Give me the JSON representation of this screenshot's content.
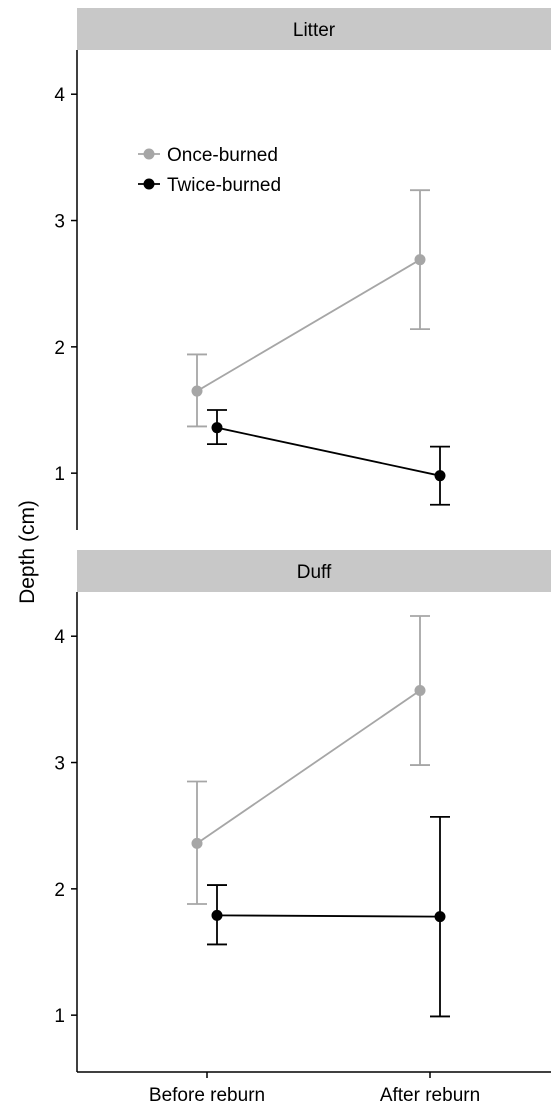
{
  "chart_data": {
    "type": "line",
    "ylabel": "Depth (cm)",
    "xlabel": "",
    "categories": [
      "Before reburn",
      "After reburn"
    ],
    "legend": {
      "position": "top-left",
      "entries": [
        "Once-burned",
        "Twice-burned"
      ]
    },
    "colors": {
      "Once-burned": "#a6a6a6",
      "Twice-burned": "#000000",
      "strip_background": "#c8c8c8"
    },
    "grid": false,
    "panels": [
      {
        "title": "Litter",
        "ylim": [
          0.55,
          4.35
        ],
        "yticks": [
          1,
          2,
          3,
          4
        ],
        "series": [
          {
            "name": "Once-burned",
            "values": [
              1.65,
              2.69
            ],
            "lower": [
              1.37,
              2.14
            ],
            "upper": [
              1.94,
              3.24
            ]
          },
          {
            "name": "Twice-burned",
            "values": [
              1.36,
              0.98
            ],
            "lower": [
              1.23,
              0.75
            ],
            "upper": [
              1.5,
              1.21
            ]
          }
        ]
      },
      {
        "title": "Duff",
        "ylim": [
          0.55,
          4.35
        ],
        "yticks": [
          1,
          2,
          3,
          4
        ],
        "series": [
          {
            "name": "Once-burned",
            "values": [
              2.36,
              3.57
            ],
            "lower": [
              1.88,
              2.98
            ],
            "upper": [
              2.85,
              4.16
            ]
          },
          {
            "name": "Twice-burned",
            "values": [
              1.79,
              1.78
            ],
            "lower": [
              1.56,
              0.99
            ],
            "upper": [
              2.03,
              2.57
            ]
          }
        ]
      }
    ]
  }
}
